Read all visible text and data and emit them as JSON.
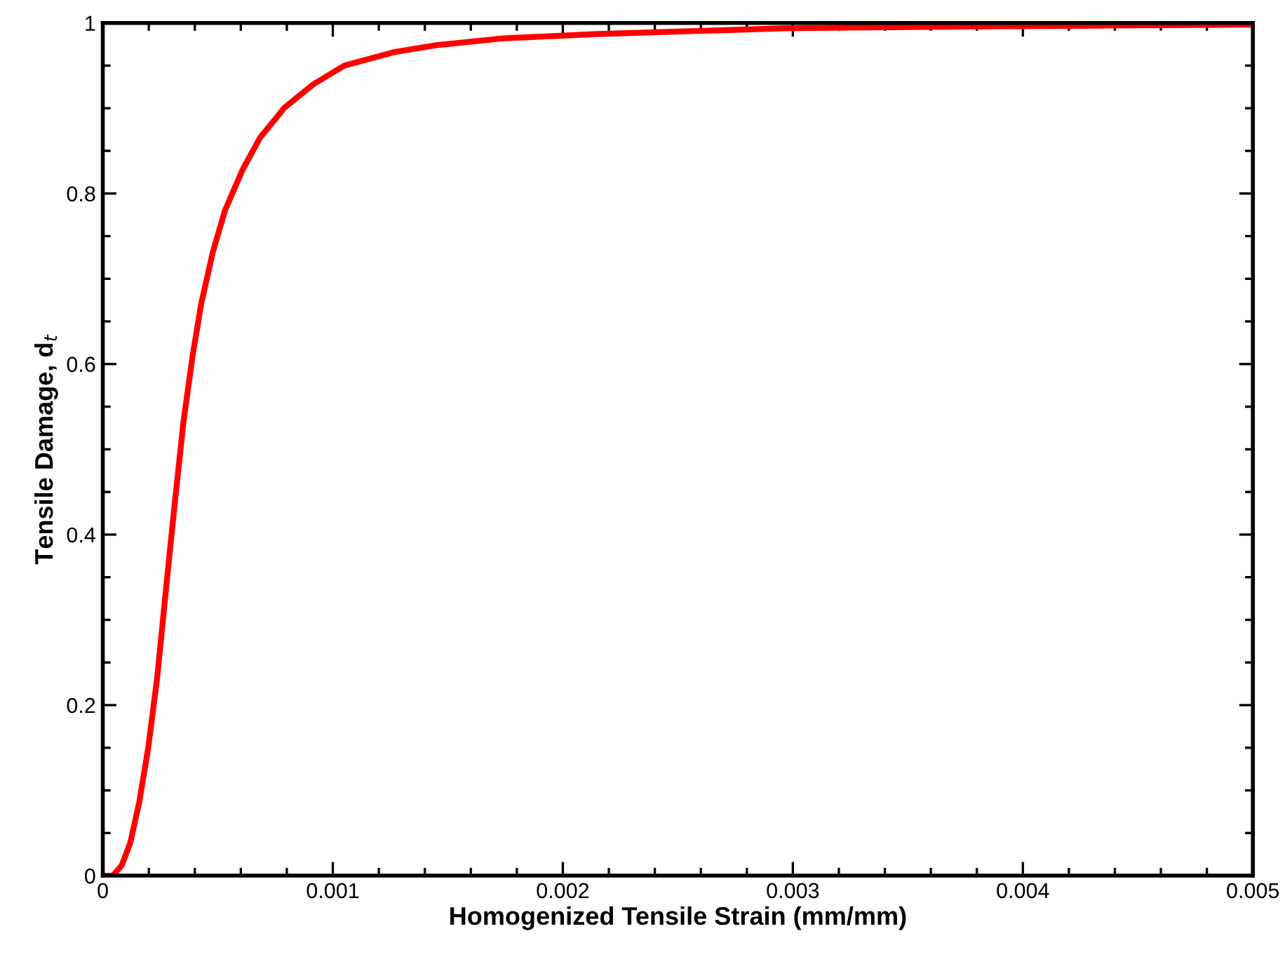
{
  "chart_data": {
    "type": "line",
    "xlabel": "Homogenized Tensile Strain (mm/mm)",
    "ylabel": "Tensile Damage, d$_{t}$",
    "x": [
      0,
      4.4e-05,
      8.2e-05,
      0.00012,
      0.000159,
      0.000197,
      0.000236,
      0.000274,
      0.000313,
      0.000351,
      0.00039,
      0.000428,
      0.000479,
      0.000531,
      0.000608,
      0.000685,
      0.00077,
      0.000787,
      0.000915,
      0.00105,
      0.00127,
      0.00145,
      0.0016,
      0.00174,
      0.00215,
      0.00299,
      0.00382,
      0.005
    ],
    "series": [
      {
        "color": "#ff0000",
        "values": [
          0,
          0,
          0.012,
          0.039,
          0.087,
          0.149,
          0.231,
          0.334,
          0.437,
          0.533,
          0.609,
          0.671,
          0.732,
          0.78,
          0.828,
          0.866,
          0.894,
          0.9,
          0.928,
          0.95,
          0.966,
          0.974,
          0.978,
          0.982,
          0.987,
          0.994,
          0.996,
          0.998
        ]
      }
    ],
    "xlim": [
      0,
      0.005
    ],
    "ylim": [
      0,
      1
    ],
    "xticks": [
      0,
      0.001,
      0.002,
      0.003,
      0.004,
      0.005
    ],
    "yticks": [
      0,
      0.2,
      0.4,
      0.6,
      0.8,
      1
    ],
    "grid": false,
    "legend": false,
    "marker": "none",
    "line_style": "solid"
  }
}
